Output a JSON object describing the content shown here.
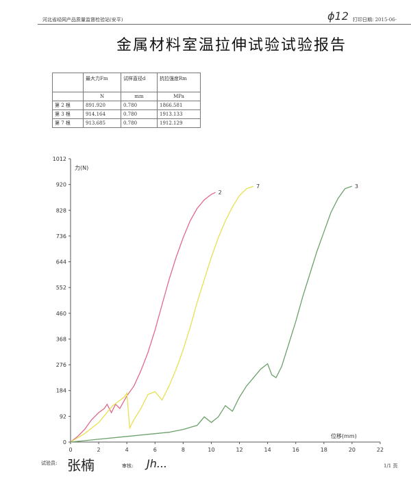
{
  "header": {
    "org": "河北省经网产品质量监督检验站(安平)",
    "handwritten_note": "ϕ12",
    "print_date": "打印日期: 2015-06-"
  },
  "title": "金属材料室温拉伸试验试验报告",
  "results_table": {
    "headers": [
      "",
      "最大力Fm",
      "试样直径d",
      "抗拉强度Rm"
    ],
    "units": [
      "",
      "N",
      "mm",
      "MPa"
    ],
    "rows": [
      [
        "第 2 根",
        "891.920",
        "0.780",
        "1866.581"
      ],
      [
        "第 3 根",
        "914.164",
        "0.780",
        "1913.133"
      ],
      [
        "第 7 根",
        "913.685",
        "0.780",
        "1912.129"
      ]
    ]
  },
  "chart_data": {
    "type": "line",
    "xlabel": "位移(mm)",
    "ylabel": "力(N)",
    "xlim": [
      0,
      22
    ],
    "ylim": [
      0,
      1012
    ],
    "xticks": [
      0,
      2,
      4,
      6,
      8,
      10,
      12,
      14,
      16,
      18,
      20,
      22
    ],
    "yticks": [
      0,
      92,
      184,
      276,
      368,
      460,
      552,
      644,
      736,
      828,
      920,
      1012
    ],
    "grid": false,
    "series": [
      {
        "name": "2",
        "color": "#e06a8a",
        "x": [
          0,
          0.5,
          1,
          1.5,
          2,
          2.4,
          2.6,
          2.9,
          3.2,
          3.5,
          4,
          4.5,
          5,
          5.5,
          6,
          6.5,
          7,
          7.5,
          8,
          8.5,
          9,
          9.5,
          10,
          10.3
        ],
        "y": [
          0,
          20,
          45,
          80,
          105,
          120,
          135,
          105,
          135,
          120,
          165,
          200,
          255,
          320,
          400,
          490,
          580,
          660,
          730,
          790,
          835,
          865,
          885,
          892
        ]
      },
      {
        "name": "7",
        "color": "#e8e050",
        "x": [
          0,
          1,
          2,
          3,
          3.8,
          4,
          4.2,
          4.5,
          5,
          5.5,
          6,
          6.5,
          7,
          7.5,
          8,
          8.5,
          9,
          9.5,
          10,
          10.5,
          11,
          11.5,
          12,
          12.5,
          13
        ],
        "y": [
          0,
          30,
          70,
          130,
          160,
          175,
          50,
          80,
          120,
          170,
          180,
          150,
          200,
          260,
          330,
          410,
          500,
          580,
          660,
          730,
          790,
          840,
          880,
          905,
          914
        ]
      },
      {
        "name": "3",
        "color": "#6aa06a",
        "x": [
          0,
          2,
          4,
          6,
          7,
          8,
          9,
          9.5,
          10,
          10.5,
          11,
          11.5,
          12,
          12.5,
          13,
          13.5,
          14,
          14.3,
          14.6,
          15,
          15.5,
          16,
          16.5,
          17,
          17.5,
          18,
          18.5,
          19,
          19.5,
          20
        ],
        "y": [
          0,
          10,
          20,
          30,
          35,
          45,
          60,
          90,
          70,
          90,
          130,
          110,
          160,
          200,
          230,
          260,
          280,
          240,
          230,
          270,
          350,
          430,
          520,
          600,
          680,
          750,
          820,
          870,
          905,
          914
        ]
      }
    ]
  },
  "footer": {
    "tester_label": "试验员:",
    "tester_sig": "张楠",
    "reviewer_label": "审核:",
    "reviewer_sig": "Jh...",
    "page": "1/1 页"
  }
}
